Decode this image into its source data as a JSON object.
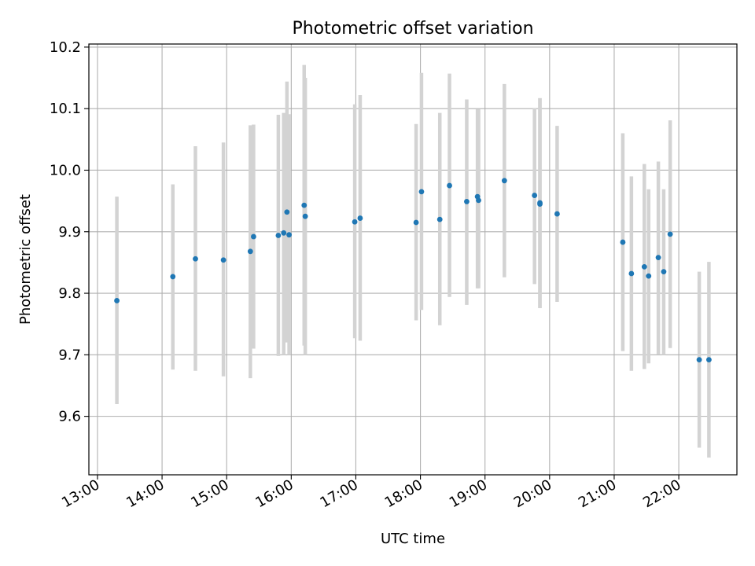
{
  "chart_data": {
    "type": "scatter",
    "title": "Photometric offset variation",
    "xlabel": "UTC time",
    "ylabel": "Photometric offset",
    "x_ticks": [
      "13:00",
      "14:00",
      "15:00",
      "16:00",
      "17:00",
      "18:00",
      "19:00",
      "20:00",
      "21:00",
      "22:00"
    ],
    "y_ticks": [
      "9.6",
      "9.7",
      "9.8",
      "9.9",
      "10.0",
      "10.1",
      "10.2"
    ],
    "xlim": [
      "12:52",
      "22:54"
    ],
    "ylim": [
      9.505,
      10.205
    ],
    "grid": true,
    "colors": {
      "point": "#1f77b4",
      "errorbar": "#d3d3d3",
      "grid": "#b0b0b0"
    },
    "series": [
      {
        "points": [
          {
            "x": "13:18",
            "y": 9.788,
            "lo": 9.62,
            "hi": 9.957
          },
          {
            "x": "14:10",
            "y": 9.827,
            "lo": 9.676,
            "hi": 9.977
          },
          {
            "x": "14:31",
            "y": 9.856,
            "lo": 9.674,
            "hi": 10.039
          },
          {
            "x": "14:57",
            "y": 9.854,
            "lo": 9.665,
            "hi": 10.045
          },
          {
            "x": "15:22",
            "y": 9.868,
            "lo": 9.662,
            "hi": 10.073
          },
          {
            "x": "15:25",
            "y": 9.892,
            "lo": 9.71,
            "hi": 10.074
          },
          {
            "x": "15:48",
            "y": 9.894,
            "lo": 9.698,
            "hi": 10.09
          },
          {
            "x": "15:53",
            "y": 9.898,
            "lo": 9.7,
            "hi": 10.093
          },
          {
            "x": "15:56",
            "y": 9.932,
            "lo": 9.72,
            "hi": 10.144
          },
          {
            "x": "15:58",
            "y": 9.895,
            "lo": 9.7,
            "hi": 10.091
          },
          {
            "x": "16:12",
            "y": 9.943,
            "lo": 9.715,
            "hi": 10.171
          },
          {
            "x": "16:13",
            "y": 9.925,
            "lo": 9.7,
            "hi": 10.15
          },
          {
            "x": "16:59",
            "y": 9.916,
            "lo": 9.727,
            "hi": 10.107
          },
          {
            "x": "17:04",
            "y": 9.922,
            "lo": 9.723,
            "hi": 10.122
          },
          {
            "x": "17:56",
            "y": 9.915,
            "lo": 9.756,
            "hi": 10.075
          },
          {
            "x": "18:01",
            "y": 9.965,
            "lo": 9.773,
            "hi": 10.158
          },
          {
            "x": "18:18",
            "y": 9.92,
            "lo": 9.748,
            "hi": 10.093
          },
          {
            "x": "18:27",
            "y": 9.975,
            "lo": 9.794,
            "hi": 10.157
          },
          {
            "x": "18:43",
            "y": 9.949,
            "lo": 9.781,
            "hi": 10.115
          },
          {
            "x": "18:53",
            "y": 9.957,
            "lo": 9.808,
            "hi": 10.099
          },
          {
            "x": "18:54",
            "y": 9.951,
            "lo": 9.808,
            "hi": 10.099
          },
          {
            "x": "19:18",
            "y": 9.983,
            "lo": 9.826,
            "hi": 10.14
          },
          {
            "x": "19:46",
            "y": 9.959,
            "lo": 9.815,
            "hi": 10.101
          },
          {
            "x": "19:51",
            "y": 9.947,
            "lo": 9.776,
            "hi": 10.117
          },
          {
            "x": "19:51",
            "y": 9.945,
            "lo": 9.776,
            "hi": 10.117
          },
          {
            "x": "20:07",
            "y": 9.929,
            "lo": 9.786,
            "hi": 10.072
          },
          {
            "x": "21:08",
            "y": 9.883,
            "lo": 9.706,
            "hi": 10.06
          },
          {
            "x": "21:16",
            "y": 9.832,
            "lo": 9.674,
            "hi": 9.99
          },
          {
            "x": "21:28",
            "y": 9.843,
            "lo": 9.677,
            "hi": 10.01
          },
          {
            "x": "21:32",
            "y": 9.828,
            "lo": 9.686,
            "hi": 9.969
          },
          {
            "x": "21:41",
            "y": 9.858,
            "lo": 9.701,
            "hi": 10.014
          },
          {
            "x": "21:46",
            "y": 9.835,
            "lo": 9.7,
            "hi": 9.969
          },
          {
            "x": "21:52",
            "y": 9.896,
            "lo": 9.711,
            "hi": 10.081
          },
          {
            "x": "22:19",
            "y": 9.692,
            "lo": 9.549,
            "hi": 9.835
          },
          {
            "x": "22:28",
            "y": 9.692,
            "lo": 9.533,
            "hi": 9.851
          }
        ]
      }
    ]
  }
}
